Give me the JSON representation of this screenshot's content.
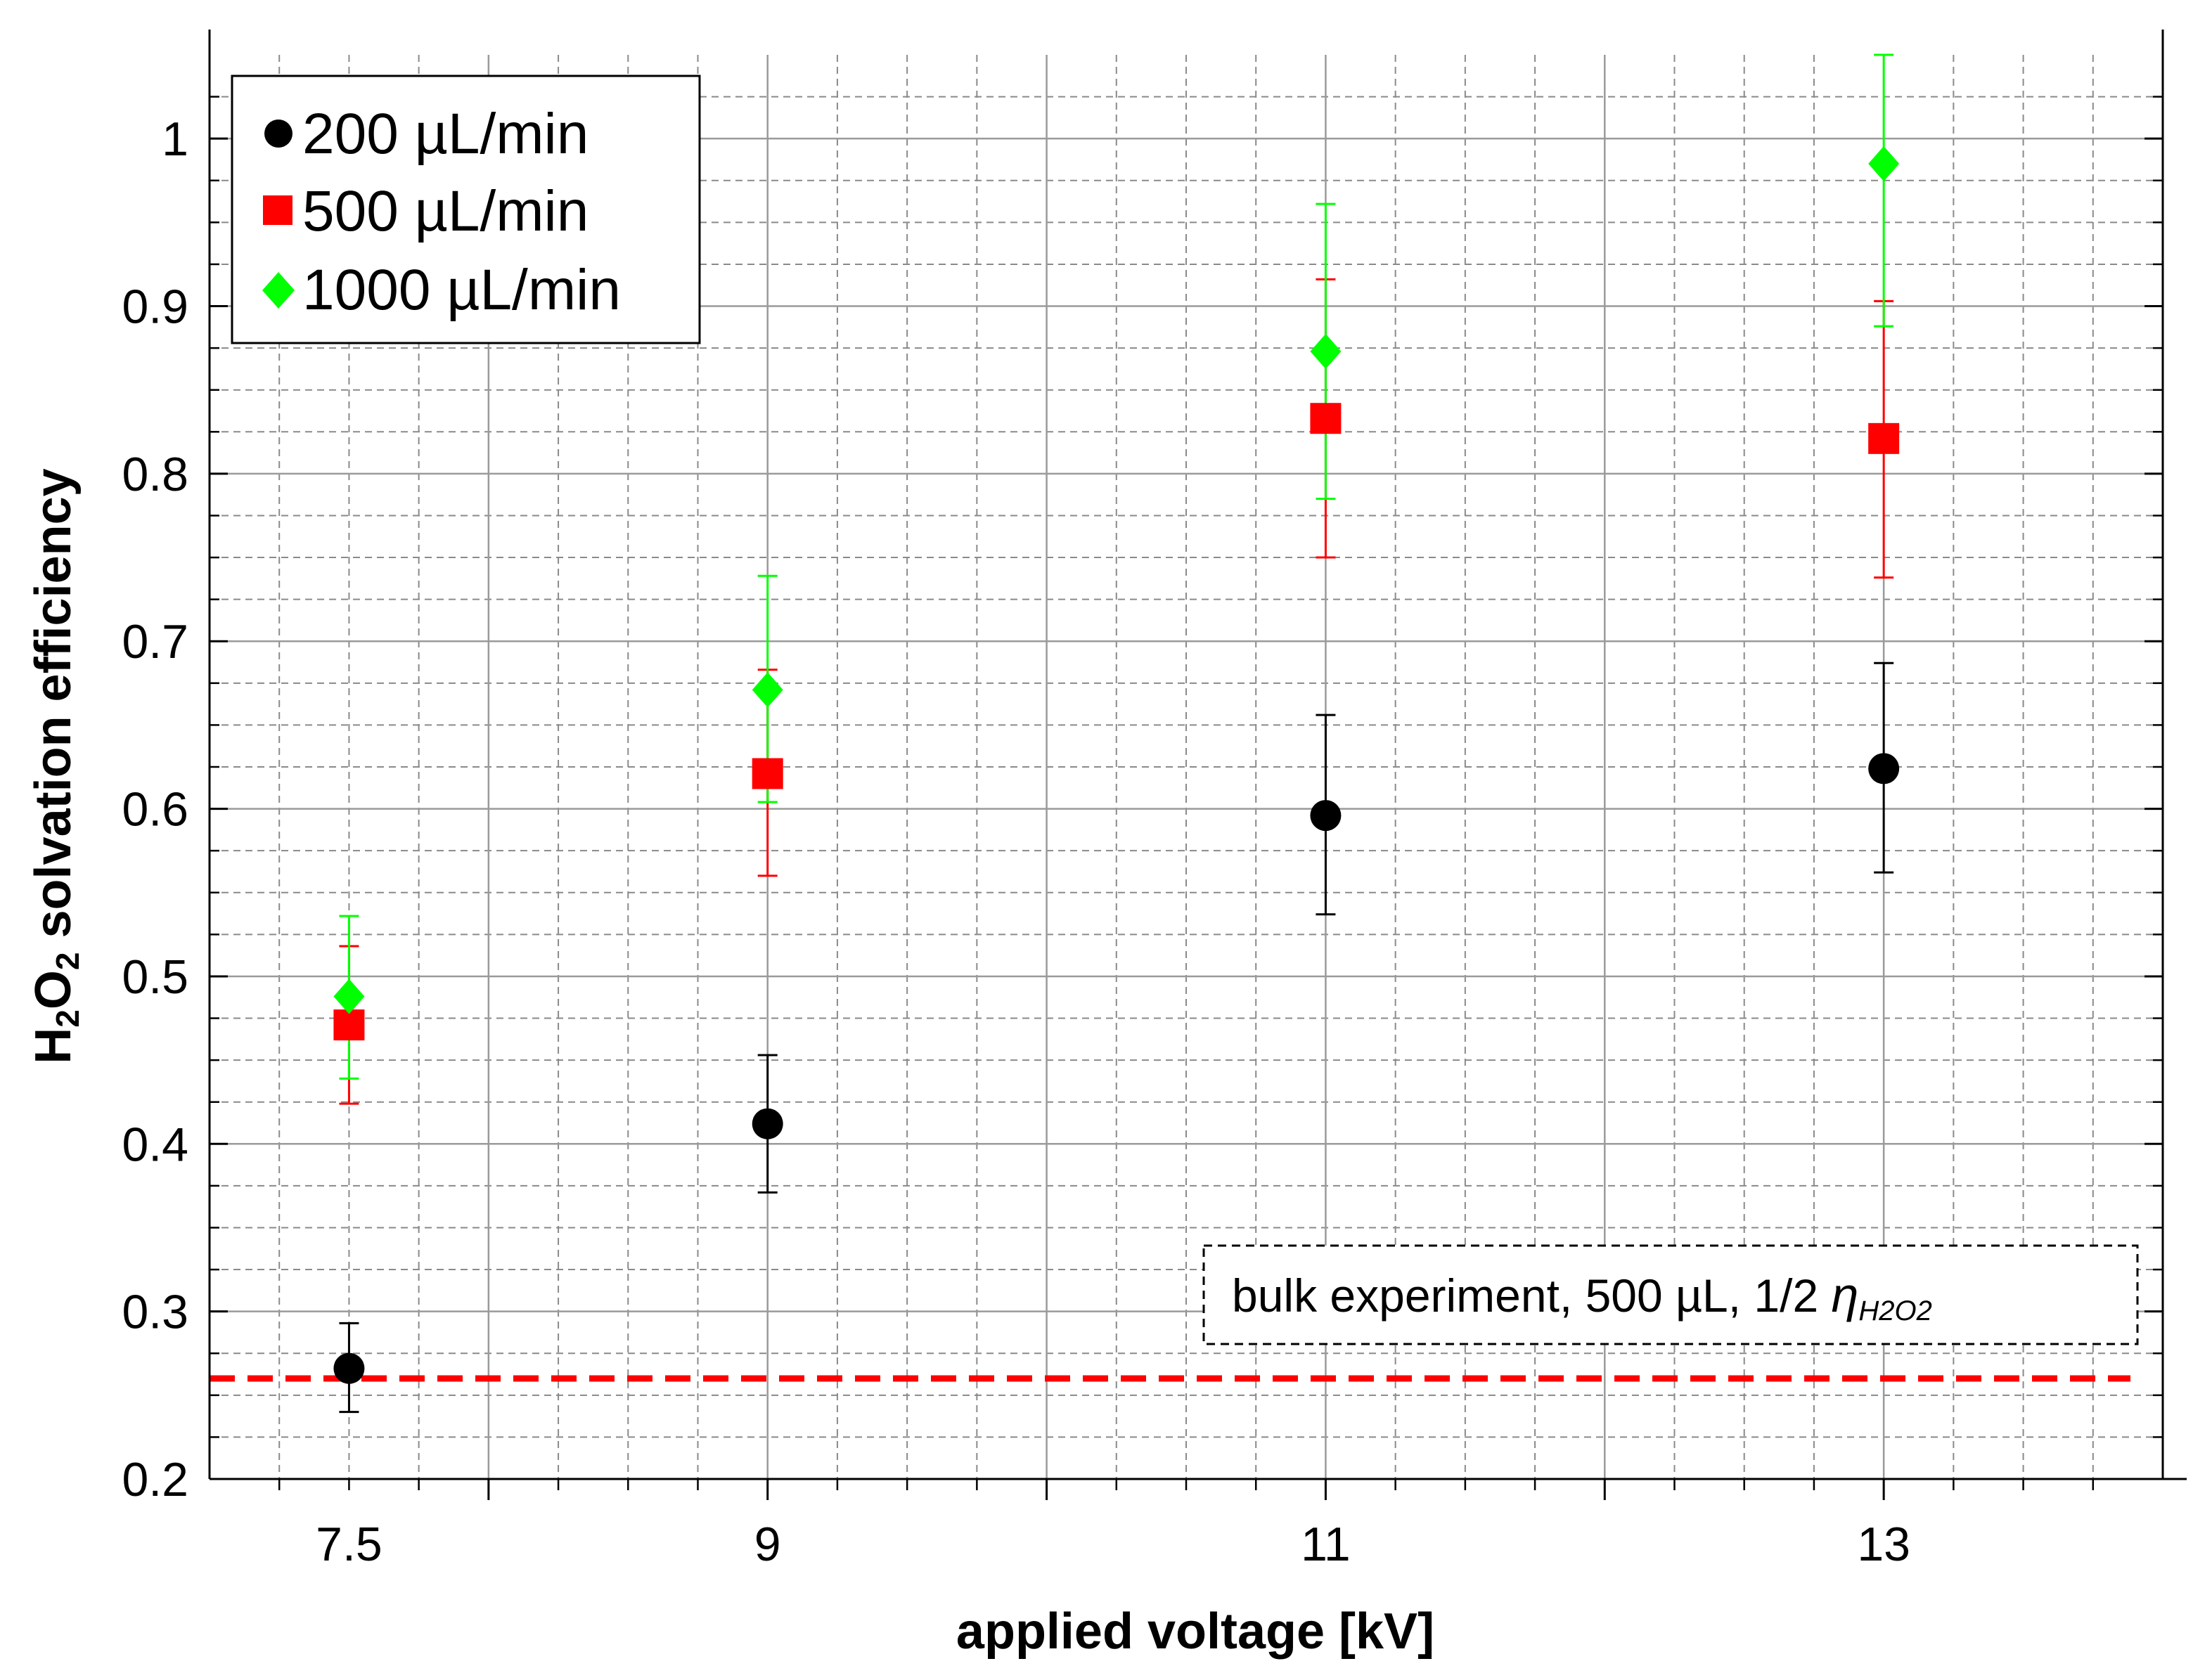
{
  "chart_data": {
    "type": "scatter",
    "title": "",
    "xlabel": "applied voltage [kV]",
    "ylabel": {
      "prefix": "H",
      "sub1": "2",
      "mid": "O",
      "sub2": "2",
      "suffix": " solvation efficiency"
    },
    "xlim": [
      7,
      14
    ],
    "ylim": [
      0.2,
      1.05
    ],
    "x_positions": [
      7.5,
      9,
      11,
      13
    ],
    "x_tick_labels": [
      "7.5",
      "9",
      "11",
      "13"
    ],
    "y_ticks": [
      0.2,
      0.3,
      0.4,
      0.5,
      0.6,
      0.7,
      0.8,
      0.9,
      1.0
    ],
    "y_tick_labels": [
      "0.2",
      "0.3",
      "0.4",
      "0.5",
      "0.6",
      "0.7",
      "0.8",
      "0.9",
      "1"
    ],
    "grid": true,
    "legend_position": "top-left",
    "series": [
      {
        "name": "200 µL/min",
        "marker": "circle",
        "color": "#000000",
        "values": [
          0.266,
          0.412,
          0.596,
          0.624
        ],
        "err_low": [
          0.24,
          0.371,
          0.537,
          0.562
        ],
        "err_high": [
          0.293,
          0.453,
          0.656,
          0.687
        ]
      },
      {
        "name": "500 µL/min",
        "marker": "square",
        "color": "#ff0000",
        "values": [
          0.471,
          0.621,
          0.833,
          0.821
        ],
        "err_low": [
          0.424,
          0.56,
          0.75,
          0.738
        ],
        "err_high": [
          0.518,
          0.683,
          0.916,
          0.903
        ]
      },
      {
        "name": "1000 µL/min",
        "marker": "diamond",
        "color": "#00ff00",
        "values": [
          0.488,
          0.671,
          0.873,
          0.985
        ],
        "err_low": [
          0.439,
          0.604,
          0.785,
          0.888
        ],
        "err_high": [
          0.536,
          0.739,
          0.961,
          1.05
        ]
      }
    ],
    "reference_line": {
      "value": 0.26,
      "color": "#ff0000",
      "style": "dashed"
    },
    "annotation": {
      "text": "bulk experiment, 500 µL, 1/2 ",
      "eta": "η",
      "eta_sub": "H2O2"
    }
  }
}
